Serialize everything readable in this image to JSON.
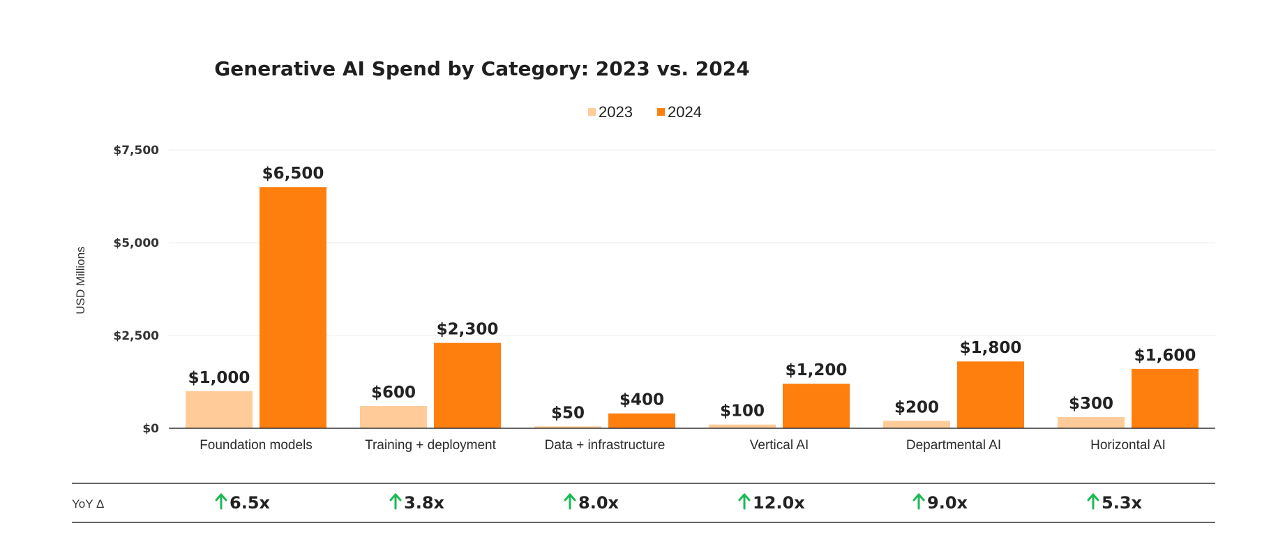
{
  "chart_data": {
    "type": "bar",
    "title": "Generative AI Spend by Category: 2023 vs. 2024",
    "xlabel": "",
    "ylabel": "USD Millions",
    "ylim": [
      0,
      7500
    ],
    "yticks": [
      0,
      2500,
      5000,
      7500
    ],
    "ytick_labels": [
      "$0",
      "$2,500",
      "$5,000",
      "$7,500"
    ],
    "grid": true,
    "legend_position": "top-center",
    "categories": [
      "Foundation models",
      "Training + deployment",
      "Data + infrastructure",
      "Vertical AI",
      "Departmental AI",
      "Horizontal AI"
    ],
    "series": [
      {
        "name": "2023",
        "color": "#FFCC99",
        "values": [
          1000,
          600,
          50,
          100,
          200,
          300
        ],
        "labels": [
          "$1,000",
          "$600",
          "$50",
          "$100",
          "$200",
          "$300"
        ]
      },
      {
        "name": "2024",
        "color": "#FF7F0E",
        "values": [
          6500,
          2300,
          400,
          1200,
          1800,
          1600
        ],
        "labels": [
          "$6,500",
          "$2,300",
          "$400",
          "$1,200",
          "$1,800",
          "$1,600"
        ]
      }
    ],
    "yoy": {
      "label": "YoY Δ",
      "arrow_color": "#1DB954",
      "values": [
        "6.5x",
        "3.8x",
        "8.0x",
        "12.0x",
        "9.0x",
        "5.3x"
      ]
    }
  }
}
